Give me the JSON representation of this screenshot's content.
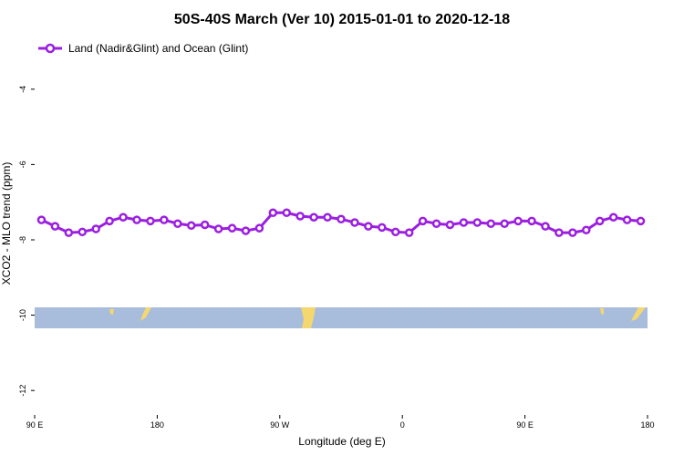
{
  "chart_data": {
    "type": "line",
    "title": "50S-40S March (Ver 10)   2015-01-01 to 2020-12-18",
    "x_label": "Longitude (deg E)",
    "y_label": "XCO2 - MLO trend (ppm)",
    "x": [
      95,
      105,
      115,
      125,
      135,
      145,
      155,
      165,
      175,
      185,
      195,
      205,
      215,
      225,
      235,
      245,
      255,
      265,
      275,
      285,
      295,
      305,
      315,
      325,
      335,
      345,
      355,
      365,
      375,
      385,
      395,
      405,
      415,
      425,
      435,
      445,
      455,
      465,
      475,
      485,
      495,
      505,
      515,
      525,
      535
    ],
    "series": [
      {
        "name": "Land (Nadir&Glint) and Ocean (Glint)",
        "color": "#9b1fe0",
        "values": [
          -7.47,
          -7.64,
          -7.81,
          -7.79,
          -7.71,
          -7.5,
          -7.4,
          -7.47,
          -7.5,
          -7.47,
          -7.57,
          -7.62,
          -7.6,
          -7.71,
          -7.69,
          -7.76,
          -7.69,
          -7.28,
          -7.28,
          -7.37,
          -7.4,
          -7.4,
          -7.45,
          -7.54,
          -7.64,
          -7.67,
          -7.79,
          -7.81,
          -7.5,
          -7.57,
          -7.6,
          -7.54,
          -7.54,
          -7.57,
          -7.57,
          -7.5,
          -7.5,
          -7.64,
          -7.81,
          -7.81,
          -7.74,
          -7.5,
          -7.4,
          -7.47,
          -7.5
        ]
      }
    ],
    "xlim": [
      90,
      540
    ],
    "xticks": [
      {
        "value": 90,
        "label": "90 E"
      },
      {
        "value": 180,
        "label": "180"
      },
      {
        "value": 270,
        "label": "90 W"
      },
      {
        "value": 360,
        "label": "0"
      },
      {
        "value": 450,
        "label": "90 E"
      },
      {
        "value": 540,
        "label": "180"
      }
    ],
    "ylim": [
      -12.65,
      -2.6
    ],
    "yticks": [
      -4,
      -6,
      -8,
      -10,
      -12
    ],
    "legend": "top-left"
  }
}
